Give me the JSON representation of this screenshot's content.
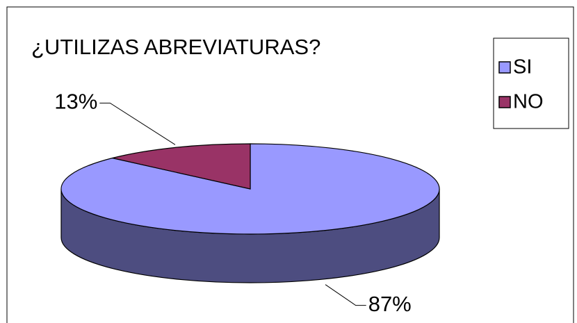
{
  "chart_data": {
    "type": "pie",
    "title": "¿UTILIZAS ABREVIATURAS?",
    "categories": [
      "SI",
      "NO"
    ],
    "values": [
      87,
      13
    ],
    "value_labels": [
      "87%",
      "13%"
    ],
    "colors": [
      "#9999ff",
      "#993366"
    ],
    "legend": "top-right",
    "three_d": true
  }
}
